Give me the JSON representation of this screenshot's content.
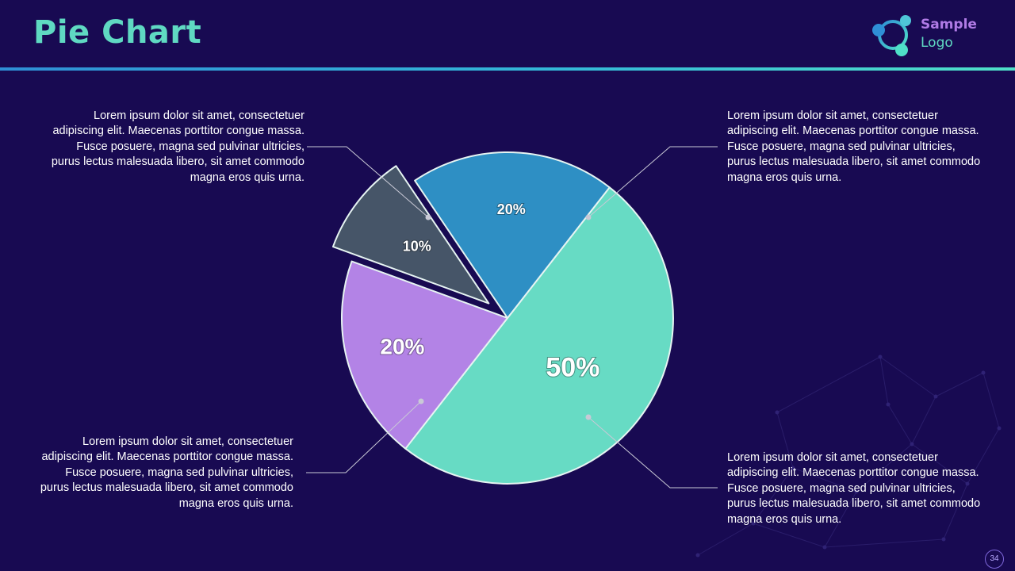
{
  "header": {
    "title": "Pie Chart",
    "logo_line1": "Sample",
    "logo_line2": "Logo"
  },
  "callouts": {
    "top_left": "Lorem ipsum dolor sit amet, consectetuer adipiscing elit. Maecenas porttitor congue massa. Fusce posuere, magna sed pulvinar ultricies, purus lectus malesuada libero, sit amet commodo magna eros quis urna.",
    "top_right": "Lorem ipsum dolor sit amet, consectetuer adipiscing elit. Maecenas porttitor congue massa. Fusce posuere, magna sed pulvinar ultricies, purus lectus malesuada libero, sit amet commodo magna eros quis urna.",
    "bottom_left": "Lorem ipsum dolor sit amet, consectetuer adipiscing elit. Maecenas porttitor congue massa. Fusce posuere, magna sed pulvinar ultricies, purus lectus malesuada libero, sit amet commodo magna eros quis urna.",
    "bottom_right": "Lorem ipsum dolor sit amet, consectetuer adipiscing elit. Maecenas porttitor congue massa. Fusce posuere, magna sed pulvinar ultricies, purus lectus malesuada libero, sit amet commodo magna eros quis urna."
  },
  "page_number": "34",
  "colors": {
    "background": "#180a52",
    "title": "#5fd9c2",
    "slice_teal": "#67dbc4",
    "slice_blue": "#2e8fc4",
    "slice_slate": "#465568",
    "slice_purple": "#b383e6"
  },
  "chart_data": {
    "type": "pie",
    "title": "",
    "slices": [
      {
        "label": "50%",
        "value": 50,
        "color": "#67dbc4",
        "exploded": false
      },
      {
        "label": "20%",
        "value": 20,
        "color": "#b383e6",
        "exploded": false
      },
      {
        "label": "10%",
        "value": 10,
        "color": "#465568",
        "exploded": true
      },
      {
        "label": "20%",
        "value": 20,
        "color": "#2e8fc4",
        "exploded": false
      }
    ],
    "legend": "none"
  }
}
